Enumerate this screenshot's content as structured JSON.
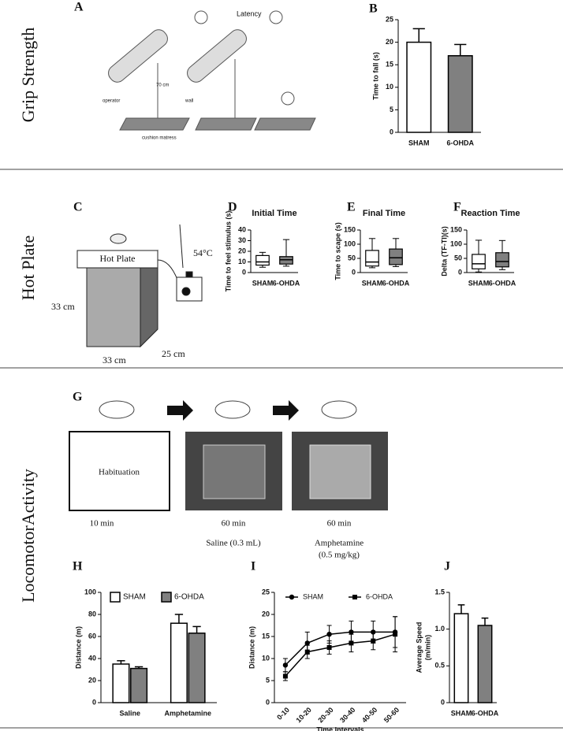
{
  "sections": [
    "Grip Strength",
    "Hot Plate",
    "LocomotorActivity"
  ],
  "panel_labels": [
    "A",
    "B",
    "C",
    "D",
    "E",
    "F",
    "G",
    "H",
    "I",
    "J"
  ],
  "diagram_a": {
    "latency": "Latency",
    "height": "70 cm",
    "operator": "operator",
    "wall": "wall",
    "mattress": "cushion matress"
  },
  "diagram_c": {
    "device": "Hot Plate",
    "temperature": "54°C",
    "height": "33 cm",
    "width": "33 cm",
    "depth": "25 cm"
  },
  "diagram_g": {
    "box": "Habituation",
    "steps": [
      {
        "time": "10 min"
      },
      {
        "time": "60 min",
        "treatment": "Saline (0.3 mL)"
      },
      {
        "time": "60 min",
        "treatment": "Amphetamine",
        "dose": "(0.5 mg/kg)"
      }
    ]
  },
  "chart_data": [
    {
      "type": "bar",
      "ylabel": "Time to fall (s)",
      "categories": [
        "SHAM",
        "6-OHDA"
      ],
      "values": [
        20,
        17
      ],
      "errors": [
        3,
        2.5
      ],
      "colors": [
        "#ffffff",
        "#808080"
      ],
      "ylim": [
        0,
        25
      ],
      "yticks": [
        0,
        5,
        10,
        15,
        20,
        25
      ]
    },
    {
      "type": "box",
      "title": "Initial Time",
      "ylabel": "Time to feel stimulus (s)",
      "categories": [
        "SHAM",
        "6-OHDA"
      ],
      "colors": [
        "#ffffff",
        "#808080"
      ],
      "stats": [
        {
          "min": 5,
          "q1": 7,
          "median": 10,
          "q3": 16,
          "max": 19
        },
        {
          "min": 6,
          "q1": 8,
          "median": 12,
          "q3": 15,
          "max": 31
        }
      ],
      "ylim": [
        0,
        40
      ],
      "yticks": [
        0,
        10,
        20,
        30,
        40
      ]
    },
    {
      "type": "box",
      "title": "Final Time",
      "ylabel": "Time to scape (s)",
      "categories": [
        "SHAM",
        "6-OHDA"
      ],
      "colors": [
        "#ffffff",
        "#808080"
      ],
      "stats": [
        {
          "min": 17,
          "q1": 23,
          "median": 37,
          "q3": 78,
          "max": 120
        },
        {
          "min": 21,
          "q1": 28,
          "median": 52,
          "q3": 83,
          "max": 120
        }
      ],
      "ylim": [
        0,
        150
      ],
      "yticks": [
        0,
        50,
        100,
        150
      ]
    },
    {
      "type": "box",
      "title": "Reaction Time",
      "ylabel": "Delta (TF-TI)(s)",
      "categories": [
        "SHAM",
        "6-OHDA"
      ],
      "colors": [
        "#ffffff",
        "#808080"
      ],
      "stats": [
        {
          "min": 2,
          "q1": 13,
          "median": 31,
          "q3": 64,
          "max": 114
        },
        {
          "min": 10,
          "q1": 20,
          "median": 39,
          "q3": 70,
          "max": 113
        }
      ],
      "ylim": [
        0,
        150
      ],
      "yticks": [
        0,
        50,
        100,
        150
      ]
    },
    {
      "type": "groupbar",
      "ylabel": "Distance (m)",
      "categories": [
        "Saline",
        "Amphetamine"
      ],
      "series": [
        {
          "name": "SHAM",
          "color": "#ffffff",
          "values": [
            35,
            72
          ],
          "errors": [
            3,
            8
          ]
        },
        {
          "name": "6-OHDA",
          "color": "#808080",
          "values": [
            31,
            63
          ],
          "errors": [
            1.5,
            6
          ]
        }
      ],
      "ylim": [
        0,
        100
      ],
      "yticks": [
        0,
        20,
        40,
        60,
        80,
        100
      ],
      "legend": "top"
    },
    {
      "type": "line",
      "ylabel": "Distance (m)",
      "xlabel": "Time Intervals",
      "categories": [
        "0-10",
        "10-20",
        "20-30",
        "30-40",
        "40-50",
        "50-60"
      ],
      "series": [
        {
          "name": "SHAM",
          "color": "#000000",
          "marker": "circle",
          "values": [
            8.5,
            13.5,
            15.5,
            16,
            16,
            16
          ],
          "errors": [
            1.5,
            2.5,
            2,
            2.5,
            2.5,
            3.5
          ]
        },
        {
          "name": "6-OHDA",
          "color": "#000000",
          "marker": "square",
          "values": [
            6,
            11.5,
            12.5,
            13.5,
            14,
            15.5
          ],
          "errors": [
            1,
            1.5,
            1.5,
            2,
            2,
            4
          ]
        }
      ],
      "ylim": [
        0,
        25
      ],
      "yticks": [
        0,
        5,
        10,
        15,
        20,
        25
      ],
      "legend": "top"
    },
    {
      "type": "bar",
      "ylabel": [
        "Average Speed",
        "(m/min)"
      ],
      "categories": [
        "SHAM",
        "6-OHDA"
      ],
      "values": [
        1.21,
        1.05
      ],
      "errors": [
        0.12,
        0.1
      ],
      "colors": [
        "#ffffff",
        "#808080"
      ],
      "ylim": [
        0,
        1.5
      ],
      "yticks": [
        0,
        0.5,
        {
          "value": 1.0,
          "label": "1.0"
        },
        1.5
      ]
    }
  ]
}
